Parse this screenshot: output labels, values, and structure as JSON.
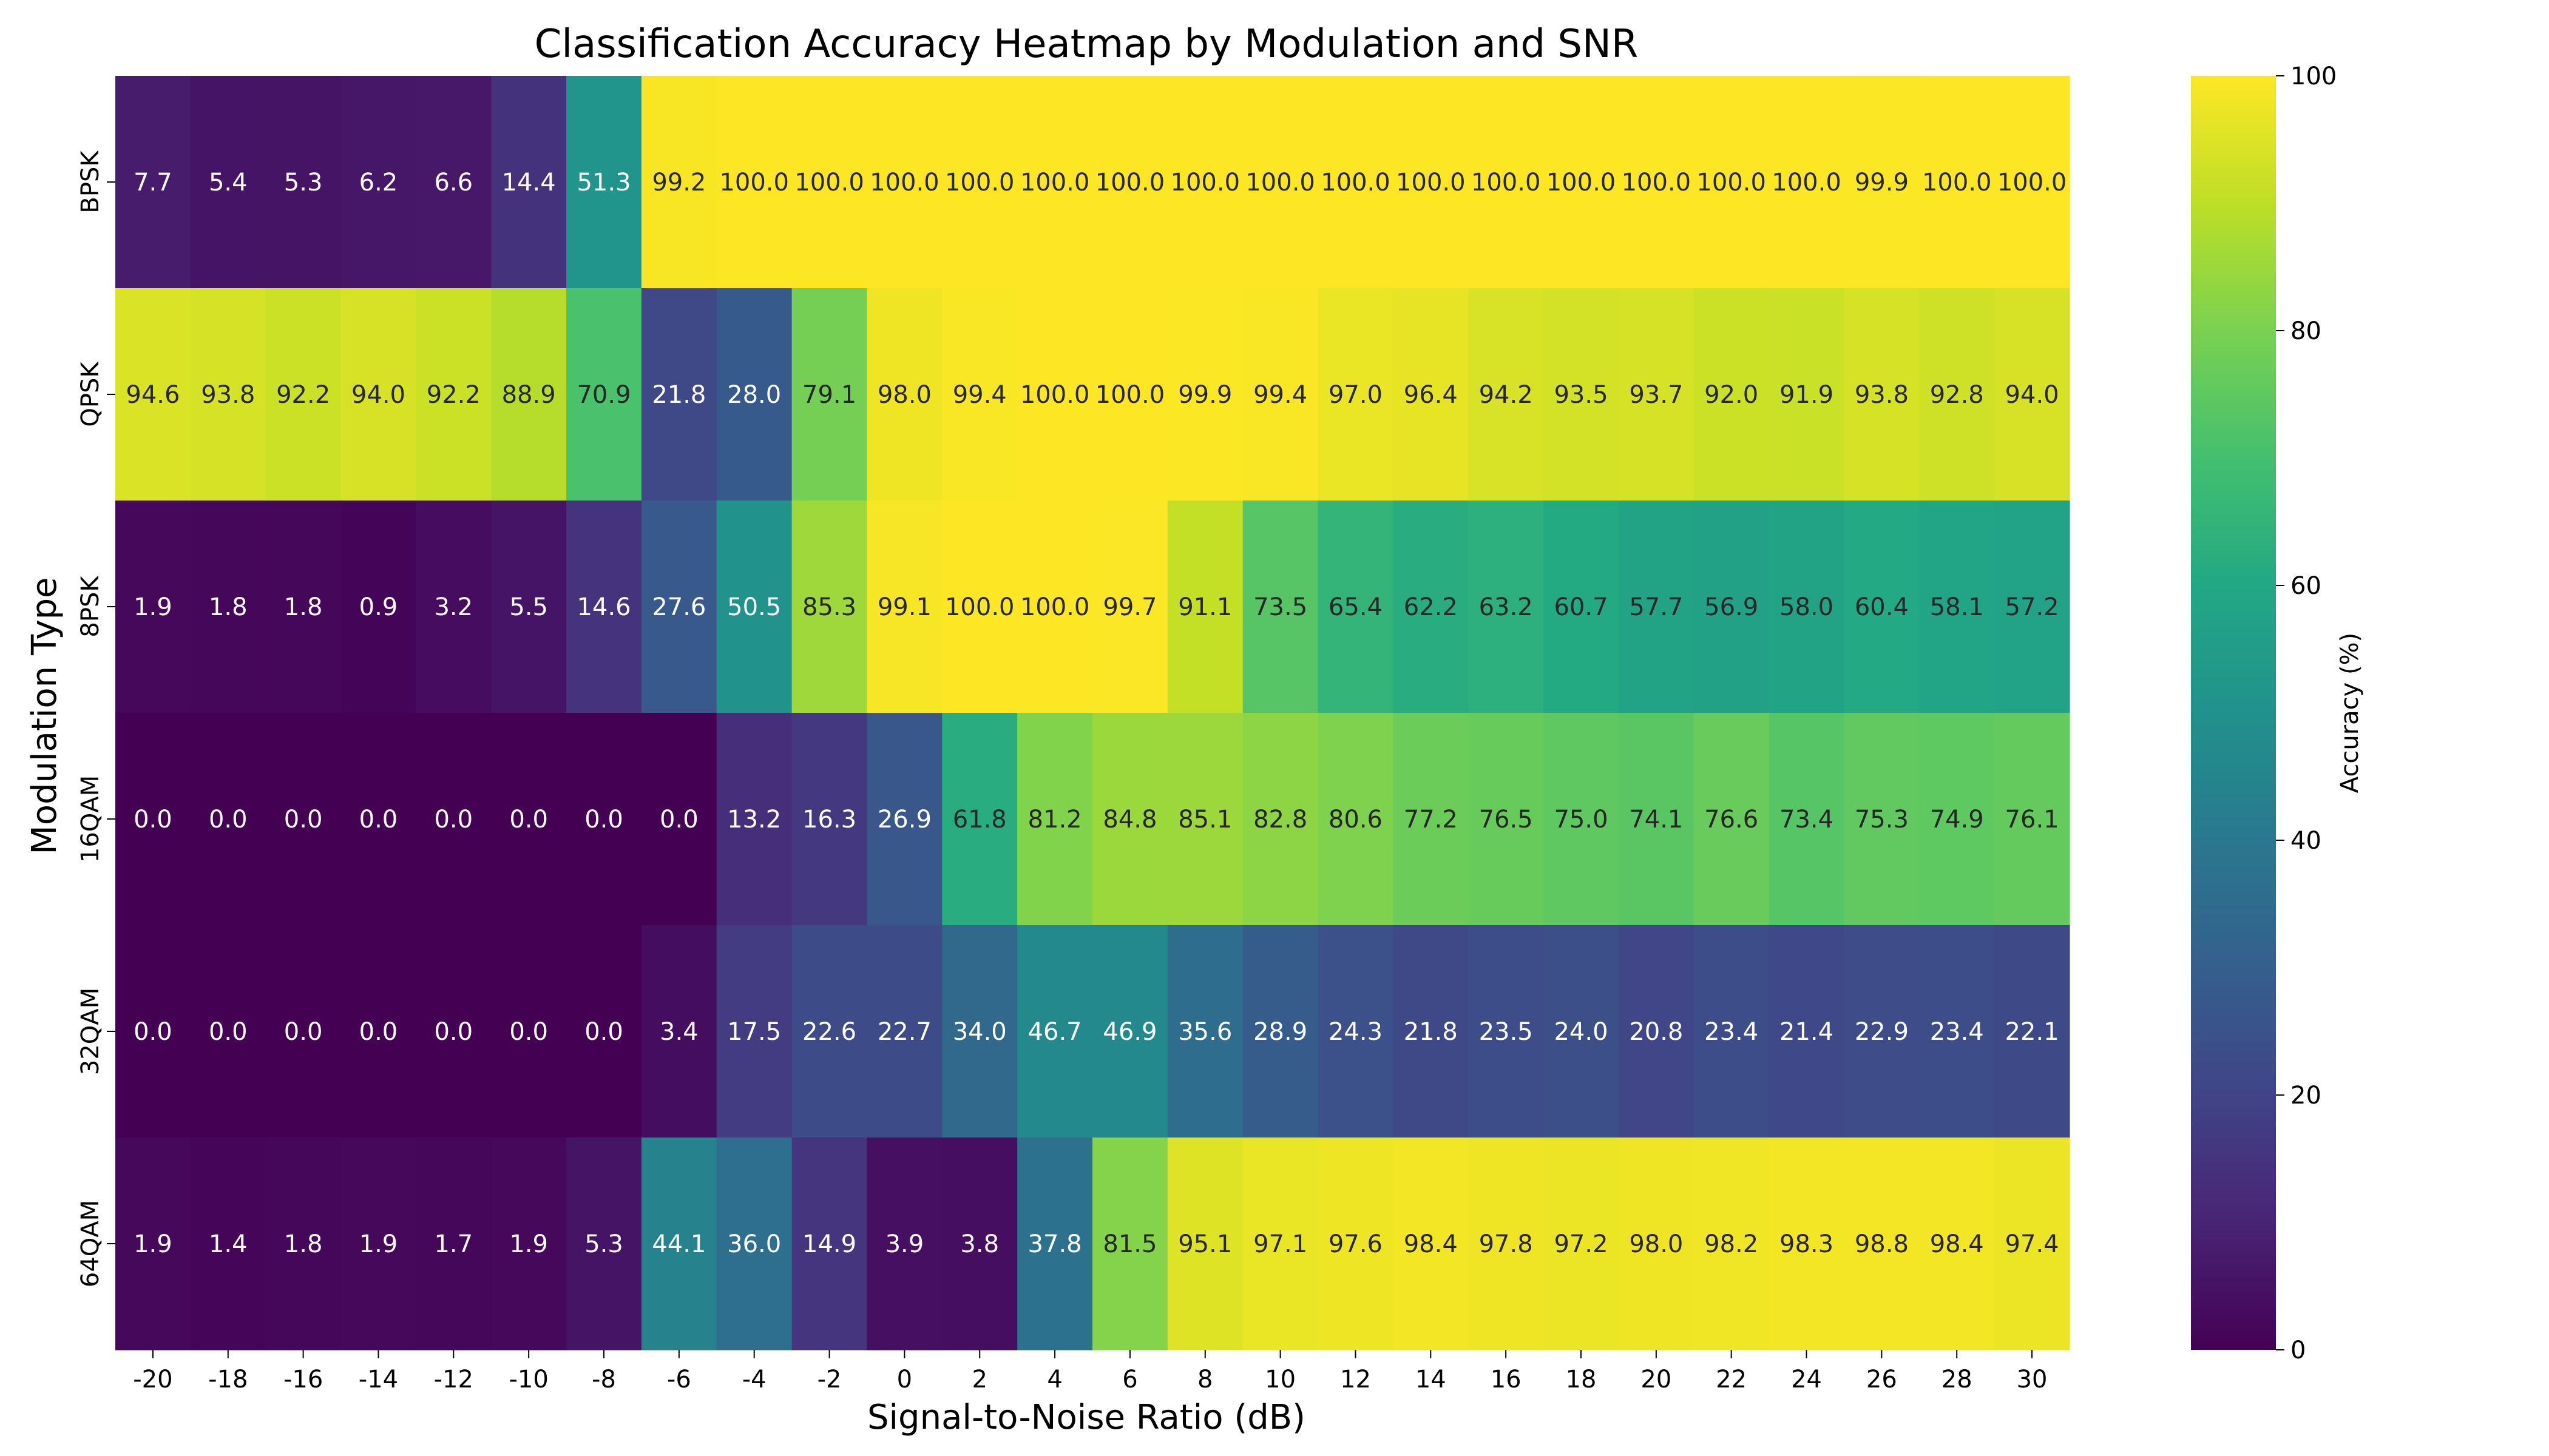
{
  "chart_data": {
    "type": "heatmap",
    "title": "Classification Accuracy Heatmap by Modulation and SNR",
    "xlabel": "Signal-to-Noise Ratio (dB)",
    "ylabel": "Modulation Type",
    "x": [
      "-20",
      "-18",
      "-16",
      "-14",
      "-12",
      "-10",
      "-8",
      "-6",
      "-4",
      "-2",
      "0",
      "2",
      "4",
      "6",
      "8",
      "10",
      "12",
      "14",
      "16",
      "18",
      "20",
      "22",
      "24",
      "26",
      "28",
      "30"
    ],
    "y": [
      "BPSK",
      "QPSK",
      "8PSK",
      "16QAM",
      "32QAM",
      "64QAM"
    ],
    "values": [
      [
        7.7,
        5.4,
        5.3,
        6.2,
        6.6,
        14.4,
        51.3,
        99.2,
        100.0,
        100.0,
        100.0,
        100.0,
        100.0,
        100.0,
        100.0,
        100.0,
        100.0,
        100.0,
        100.0,
        100.0,
        100.0,
        100.0,
        100.0,
        99.9,
        100.0,
        100.0
      ],
      [
        94.6,
        93.8,
        92.2,
        94.0,
        92.2,
        88.9,
        70.9,
        21.8,
        28.0,
        79.1,
        98.0,
        99.4,
        100.0,
        100.0,
        99.9,
        99.4,
        97.0,
        96.4,
        94.2,
        93.5,
        93.7,
        92.0,
        91.9,
        93.8,
        92.8,
        94.0
      ],
      [
        1.9,
        1.8,
        1.8,
        0.9,
        3.2,
        5.5,
        14.6,
        27.6,
        50.5,
        85.3,
        99.1,
        100.0,
        100.0,
        99.7,
        91.1,
        73.5,
        65.4,
        62.2,
        63.2,
        60.7,
        57.7,
        56.9,
        58.0,
        60.4,
        58.1,
        57.2
      ],
      [
        0.0,
        0.0,
        0.0,
        0.0,
        0.0,
        0.0,
        0.0,
        0.0,
        13.2,
        16.3,
        26.9,
        61.8,
        81.2,
        84.8,
        85.1,
        82.8,
        80.6,
        77.2,
        76.5,
        75.0,
        74.1,
        76.6,
        73.4,
        75.3,
        74.9,
        76.1
      ],
      [
        0.0,
        0.0,
        0.0,
        0.0,
        0.0,
        0.0,
        0.0,
        3.4,
        17.5,
        22.6,
        22.7,
        34.0,
        46.7,
        46.9,
        35.6,
        28.9,
        24.3,
        21.8,
        23.5,
        24.0,
        20.8,
        23.4,
        21.4,
        22.9,
        23.4,
        22.1
      ],
      [
        1.9,
        1.4,
        1.8,
        1.9,
        1.7,
        1.9,
        5.3,
        44.1,
        36.0,
        14.9,
        3.9,
        3.8,
        37.8,
        81.5,
        95.1,
        97.1,
        97.6,
        98.4,
        97.8,
        97.2,
        98.0,
        98.2,
        98.3,
        98.8,
        98.4,
        97.4
      ]
    ],
    "colorbar": {
      "label": "Accuracy (%)",
      "range": [
        0,
        100
      ],
      "ticks": [
        "0",
        "20",
        "40",
        "60",
        "80",
        "100"
      ],
      "colormap": "viridis"
    }
  }
}
